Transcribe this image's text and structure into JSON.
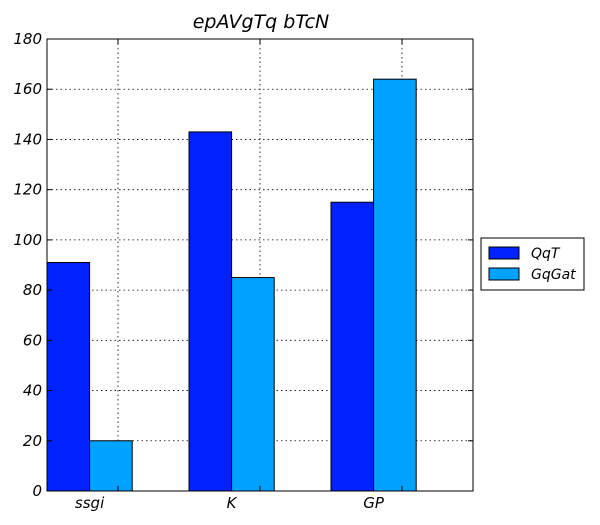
{
  "chart_data": {
    "type": "bar",
    "title": "epAVgTq  bTcN",
    "xlabel": "",
    "ylabel": "",
    "categories": [
      "ssgi",
      "K",
      "GP"
    ],
    "series": [
      {
        "name": "QqT",
        "values": [
          91,
          143,
          115
        ],
        "color": "#0022ff"
      },
      {
        "name": "GqGat",
        "values": [
          20,
          85,
          164
        ],
        "color": "#00a2ff"
      }
    ],
    "ylim": [
      0,
      180
    ],
    "yticks": [
      0,
      20,
      40,
      60,
      80,
      100,
      120,
      140,
      160,
      180
    ],
    "grid": true,
    "legend_position": "outside-right"
  }
}
